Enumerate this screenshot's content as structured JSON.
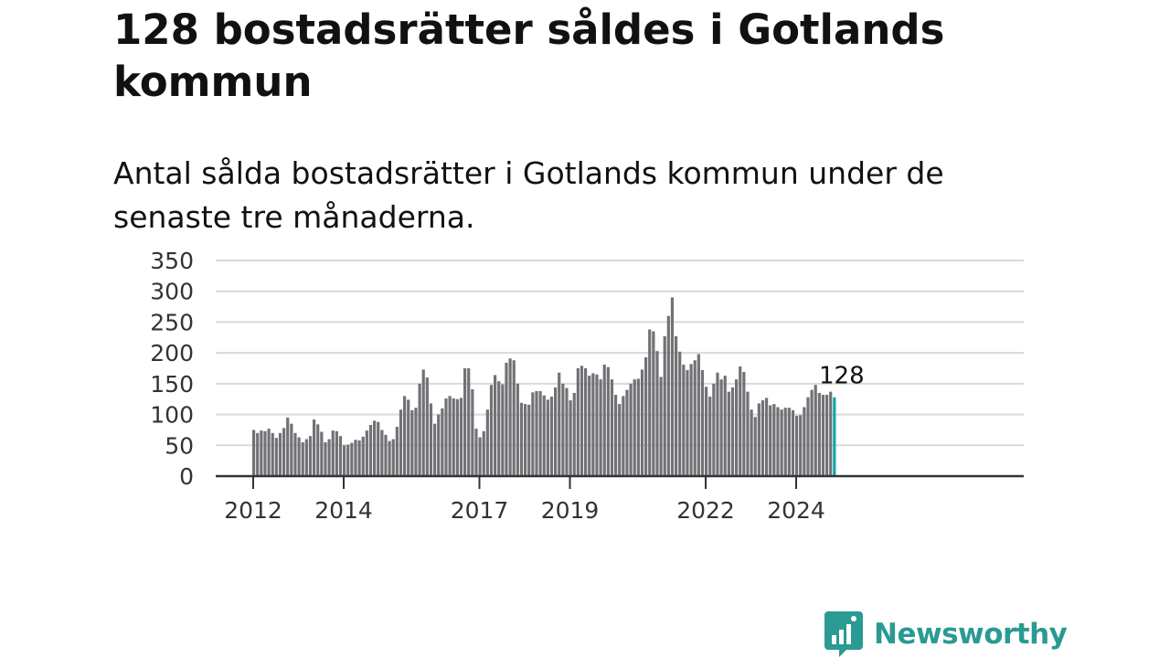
{
  "title": "128 bostadsrätter såldes i Gotlands kommun",
  "subtitle": "Antal sålda bostadsrätter i Gotlands kommun under de senaste tre månaderna.",
  "brand": {
    "name": "Newsworthy",
    "color": "#2a9a93",
    "icon": "newsworthy-bar-chart-logo-icon"
  },
  "colors": {
    "bar": "#727176",
    "highlight": "#17a3a6",
    "grid": "#d9d9d9",
    "axis": "#333333"
  },
  "chart_data": {
    "type": "bar",
    "title": "",
    "xlabel": "",
    "ylabel": "",
    "ylim": [
      0,
      350
    ],
    "yticks": [
      0,
      50,
      100,
      150,
      200,
      250,
      300,
      350
    ],
    "grid": true,
    "x_start": "2012-01",
    "xticks": [
      {
        "label": "2012",
        "index": 0
      },
      {
        "label": "2014",
        "index": 24
      },
      {
        "label": "2017",
        "index": 60
      },
      {
        "label": "2019",
        "index": 84
      },
      {
        "label": "2022",
        "index": 120
      },
      {
        "label": "2024",
        "index": 144
      }
    ],
    "values": [
      75,
      70,
      74,
      73,
      77,
      70,
      62,
      70,
      78,
      95,
      85,
      70,
      63,
      55,
      60,
      65,
      92,
      84,
      72,
      55,
      60,
      74,
      73,
      65,
      50,
      51,
      54,
      59,
      58,
      64,
      74,
      83,
      90,
      88,
      75,
      67,
      57,
      60,
      80,
      108,
      130,
      124,
      107,
      111,
      150,
      173,
      160,
      118,
      85,
      100,
      110,
      126,
      130,
      126,
      125,
      127,
      175,
      175,
      141,
      77,
      63,
      73,
      108,
      148,
      164,
      154,
      149,
      184,
      191,
      188,
      150,
      119,
      117,
      116,
      136,
      138,
      138,
      131,
      124,
      129,
      144,
      168,
      150,
      143,
      123,
      135,
      175,
      179,
      175,
      163,
      167,
      165,
      157,
      181,
      177,
      157,
      132,
      117,
      130,
      140,
      150,
      157,
      158,
      173,
      193,
      238,
      235,
      203,
      161,
      227,
      260,
      290,
      227,
      202,
      181,
      172,
      182,
      188,
      198,
      172,
      145,
      129,
      150,
      168,
      157,
      163,
      137,
      144,
      157,
      178,
      169,
      137,
      108,
      96,
      118,
      123,
      127,
      115,
      117,
      112,
      108,
      111,
      111,
      107,
      98,
      99,
      112,
      128,
      140,
      148,
      135,
      132,
      132,
      137,
      128
    ],
    "highlight_index": 154,
    "highlight_label": "128"
  }
}
